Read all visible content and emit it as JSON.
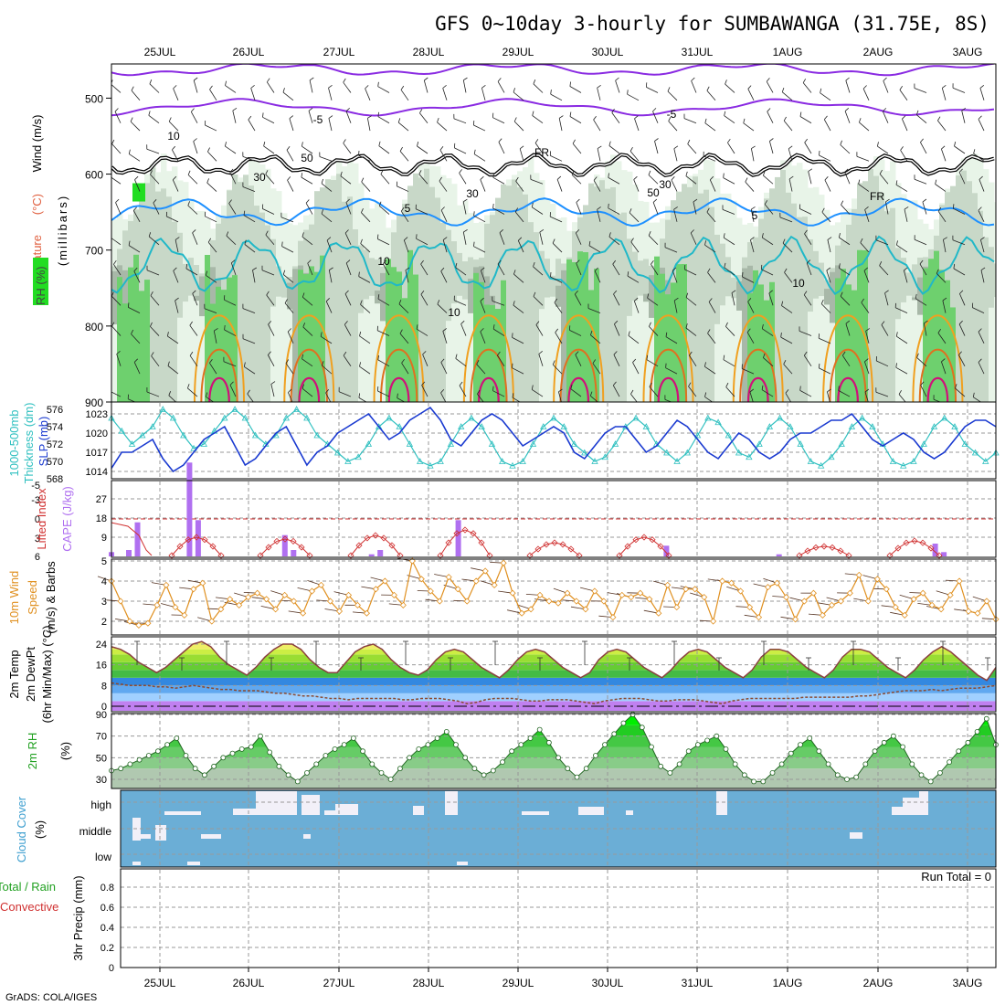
{
  "title": "GFS 0~10day 3-hourly for SUMBAWANGA (31.75E, 8S)",
  "footer": "GrADS: COLA/IGES",
  "dates": [
    "25JUL",
    "26JUL",
    "27JUL",
    "28JUL",
    "29JUL",
    "30JUL",
    "31JUL",
    "1AUG",
    "2AUG",
    "3AUG"
  ],
  "colors": {
    "rh_light": "#e8f4e8",
    "rh_mid": "#c8d8c8",
    "rh_gray": "#a8b8a8",
    "rh_green": "#6ed06e",
    "rh_bright": "#22dd22",
    "temp_purple": "#8a2be2",
    "temp_blue": "#1e90ff",
    "temp_cyan": "#20b8c8",
    "temp_orange": "#f0a020",
    "temp_dorange": "#e07020",
    "temp_magenta": "#d0107a",
    "slp": "#1a3ad0",
    "thickness": "#30c0c0",
    "lifted": "#d03030",
    "cape": "#b070f0",
    "wind10": "#e09020",
    "cloud": "#6baed6",
    "cloud_gap": "#f2f0f8"
  },
  "panels": {
    "upper": {
      "labels": {
        "rh": "RH (%)",
        "temp": "Temperature",
        "temp_unit": "(°C)",
        "wind": "Wind (m/s)",
        "axis": "(millibars)"
      }
    },
    "slp": {
      "labels": {
        "thick": "1000-500mb",
        "thick2": "Thickness (dm)",
        "slp": "SLP (mb)"
      }
    },
    "cape": {
      "labels": {
        "li": "Lifted Index",
        "cape": "CAPE (J/kg)"
      }
    },
    "wind10": {
      "labels": {
        "a": "10m Wind",
        "b": "Speed",
        "c": "(m/s) & Barbs"
      }
    },
    "temp2m": {
      "labels": {
        "a": "2m Temp",
        "b": "2m DewPt",
        "c": "(6hr Min/Max) (°C)"
      }
    },
    "rh2m": {
      "labels": {
        "a": "2m RH",
        "b": "(%)"
      }
    },
    "cloud": {
      "labels": {
        "a": "Cloud Cover",
        "b": "(%)",
        "high": "high",
        "middle": "middle",
        "low": "low"
      }
    },
    "precip": {
      "labels": {
        "a": "Total / Rain",
        "b": "Convective",
        "c": "3hr Precip (mm)"
      },
      "run_total": "Run Total = 0"
    }
  },
  "chart_data": [
    {
      "type": "contour",
      "title": "Vertical profile",
      "ylabel": "(millibars)",
      "yticks": [
        500,
        600,
        700,
        800,
        900
      ],
      "ylim": [
        450,
        900
      ],
      "contour_labels": [
        "-5",
        "-5",
        "FR",
        "FR",
        "5",
        "5",
        "10",
        "10",
        "10",
        "30",
        "50",
        "30",
        "50",
        "30",
        "10"
      ]
    },
    {
      "type": "line",
      "series": [
        {
          "name": "SLP (mb)",
          "yticks": [
            1014,
            1017,
            1020,
            1023
          ],
          "values": [
            1014.5,
            1017,
            1017,
            1018,
            1019,
            1016,
            1014,
            1015,
            1017,
            1019,
            1020,
            1021,
            1018,
            1015,
            1016,
            1018,
            1020,
            1021,
            1018,
            1015,
            1017,
            1018,
            1020,
            1021,
            1022,
            1023,
            1021,
            1019,
            1020,
            1022,
            1023,
            1024,
            1022,
            1019,
            1018,
            1020,
            1022,
            1023,
            1022,
            1020,
            1018,
            1019,
            1020,
            1021,
            1020,
            1017,
            1016,
            1018,
            1020,
            1021,
            1021,
            1019,
            1017,
            1018,
            1020,
            1022,
            1021,
            1019,
            1017,
            1016,
            1018,
            1020,
            1019,
            1017,
            1016,
            1017,
            1019,
            1020,
            1020,
            1021,
            1022,
            1022,
            1023,
            1021,
            1019,
            1018,
            1019,
            1020,
            1019,
            1017,
            1016,
            1017,
            1019,
            1021,
            1022,
            1022,
            1021
          ]
        },
        {
          "name": "Thickness (dm)",
          "yticks": [
            568,
            570,
            572,
            574,
            576
          ],
          "values": [
            575,
            573.5,
            572,
            573,
            574,
            576,
            575,
            573,
            571.5,
            572,
            573.5,
            575,
            576,
            575,
            573,
            572,
            573,
            575,
            576,
            575,
            573,
            572,
            571,
            570,
            570.5,
            572,
            574,
            575,
            574,
            572,
            570,
            569.5,
            570,
            572,
            574,
            575,
            574,
            572,
            570,
            569.5,
            570,
            572,
            574,
            575,
            574,
            572,
            571,
            570,
            570.5,
            572,
            574,
            575,
            574,
            572,
            571,
            570,
            571,
            573,
            575,
            574.5,
            573,
            571,
            570.5,
            572,
            574,
            575,
            574,
            572,
            570,
            569.5,
            570.5,
            572,
            574,
            575,
            574,
            572,
            570,
            569.5,
            570,
            572,
            574,
            575,
            574,
            572,
            571,
            570,
            571
          ]
        }
      ]
    },
    {
      "type": "bar",
      "series": [
        {
          "name": "Lifted Index",
          "yticks": [
            6,
            3,
            0,
            -3,
            -5
          ]
        },
        {
          "name": "CAPE (J/kg)",
          "yticks": [
            9,
            18,
            27
          ],
          "values": [
            2,
            0,
            3,
            16,
            0,
            0,
            0,
            0,
            0,
            44,
            17,
            0,
            0,
            0,
            0,
            0,
            0,
            0,
            0,
            0,
            10,
            3,
            0,
            0,
            0,
            0,
            0,
            0,
            0,
            0,
            1,
            3,
            0,
            0,
            0,
            0,
            0,
            0,
            0,
            0,
            17,
            0,
            0,
            0,
            0,
            0,
            0,
            0,
            0,
            0,
            0,
            0,
            0,
            0,
            0,
            0,
            0,
            0,
            0,
            0,
            0,
            0,
            0,
            0,
            5,
            0,
            0,
            0,
            0,
            0,
            0,
            0,
            0,
            0,
            0,
            0,
            0,
            1,
            0,
            0,
            0,
            0,
            0,
            0,
            0,
            0,
            0,
            0,
            0,
            0,
            0,
            0,
            0,
            0,
            0,
            6,
            2,
            0,
            0,
            0,
            0,
            0,
            0
          ]
        }
      ]
    },
    {
      "type": "line",
      "series": [
        {
          "name": "10m Wind Speed (m/s)",
          "yticks": [
            2,
            3,
            4,
            5
          ],
          "values": [
            4,
            3,
            2,
            1.8,
            1.9,
            2.8,
            3.8,
            2.7,
            2.3,
            3.6,
            3.9,
            2.0,
            2.6,
            3.1,
            2.8,
            3.2,
            3.4,
            3.1,
            2.6,
            3.3,
            3.0,
            2.4,
            3.5,
            3.8,
            3.0,
            2.5,
            3.3,
            2.8,
            2.4,
            3.6,
            4.0,
            3.3,
            2.8,
            5.0,
            4.1,
            3.5,
            3.0,
            4.2,
            3.6,
            3.0,
            4.0,
            4.5,
            3.8,
            4.9,
            3.4,
            2.4,
            2.6,
            3.3,
            3.0,
            2.9,
            3.4,
            3.0,
            2.6,
            3.5,
            3.0,
            2.2,
            3.3,
            3.2,
            3.4,
            3.1,
            2.4,
            3.8,
            2.7,
            3.6,
            3.6,
            3.2,
            2.0,
            4.0,
            3.9,
            3.5,
            2.7,
            2.2,
            3.7,
            3.9,
            3.2,
            2.1,
            3.0,
            3.4,
            2.3,
            2.8,
            3.0,
            3.4,
            4.3,
            3.0,
            4.1,
            3.6,
            2.7,
            2.3,
            3.1,
            3.4,
            2.8,
            2.6,
            3.3,
            4.0,
            2.5,
            2.4,
            3.0,
            2.1
          ]
        }
      ]
    },
    {
      "type": "area",
      "series": [
        {
          "name": "2m Temp",
          "yticks": [
            0,
            8,
            16,
            24
          ],
          "values": [
            23,
            22,
            20,
            17,
            15,
            13,
            15,
            18,
            21,
            24,
            25,
            23,
            19,
            16,
            14,
            12,
            15,
            19,
            22,
            24,
            24,
            22,
            18,
            15,
            13,
            13,
            17,
            21,
            23,
            24,
            22,
            18,
            15,
            13,
            12,
            14,
            18,
            21,
            22,
            21,
            18,
            15,
            13,
            11,
            14,
            18,
            21,
            22,
            21,
            18,
            15,
            13,
            11,
            13,
            18,
            21,
            22,
            21,
            18,
            15,
            13,
            11,
            14,
            18,
            21,
            22,
            21,
            18,
            15,
            13,
            11,
            14,
            19,
            22,
            22,
            21,
            18,
            15,
            13,
            11,
            14,
            19,
            22,
            22,
            21,
            18,
            15,
            13,
            11,
            14,
            18,
            21,
            23,
            21,
            18,
            15,
            12,
            10,
            15
          ]
        },
        {
          "name": "2m DewPt",
          "values": [
            9,
            8.5,
            8,
            8,
            8,
            7.5,
            7.5,
            7,
            7.5,
            8,
            7.5,
            7,
            6.5,
            6.5,
            6,
            6,
            6,
            5.5,
            5,
            5,
            4.5,
            4,
            4,
            3.5,
            3,
            3,
            2.5,
            3,
            3,
            3,
            3,
            3,
            2.5,
            2.5,
            3,
            3,
            3,
            2.5,
            2,
            1,
            1.5,
            2.5,
            3,
            3,
            3,
            2.5,
            2,
            2,
            2.5,
            2.5,
            2.5,
            2,
            1.5,
            1,
            2,
            2.5,
            3,
            3,
            3,
            2.5,
            2,
            2,
            2.5,
            2.5,
            2.5,
            2,
            1.5,
            1,
            2,
            2.5,
            3,
            3,
            3,
            3,
            3,
            3,
            3.5,
            3.5,
            3.5,
            3.5,
            3.5,
            3.5,
            4,
            4,
            4.5,
            5,
            5.5,
            6,
            6,
            6,
            6.5,
            6,
            6.5,
            7,
            7,
            7,
            7.5,
            8
          ]
        }
      ]
    },
    {
      "type": "area",
      "series": [
        {
          "name": "2m RH (%)",
          "yticks": [
            30,
            50,
            70,
            90
          ],
          "values": [
            38,
            40,
            44,
            48,
            52,
            56,
            62,
            68,
            52,
            40,
            34,
            42,
            50,
            54,
            58,
            60,
            70,
            55,
            42,
            34,
            28,
            36,
            44,
            52,
            58,
            62,
            68,
            56,
            44,
            36,
            30,
            40,
            50,
            58,
            62,
            68,
            74,
            62,
            50,
            40,
            34,
            38,
            46,
            56,
            62,
            68,
            76,
            64,
            50,
            40,
            32,
            40,
            52,
            62,
            72,
            82,
            90,
            78,
            60,
            42,
            36,
            44,
            56,
            62,
            66,
            70,
            58,
            44,
            34,
            28,
            28,
            36,
            44,
            54,
            62,
            68,
            56,
            44,
            34,
            30,
            32,
            44,
            56,
            64,
            70,
            60,
            44,
            34,
            28,
            36,
            46,
            56,
            64,
            74,
            86,
            62
          ]
        }
      ]
    },
    {
      "type": "bar",
      "series": [
        {
          "name": "high",
          "values": []
        },
        {
          "name": "middle",
          "values": []
        },
        {
          "name": "low",
          "values": []
        }
      ]
    },
    {
      "type": "bar",
      "series": [
        {
          "name": "3hr Precip (mm)",
          "yticks": [
            0,
            0.2,
            0.4,
            0.6,
            0.8
          ],
          "values": []
        }
      ]
    }
  ]
}
